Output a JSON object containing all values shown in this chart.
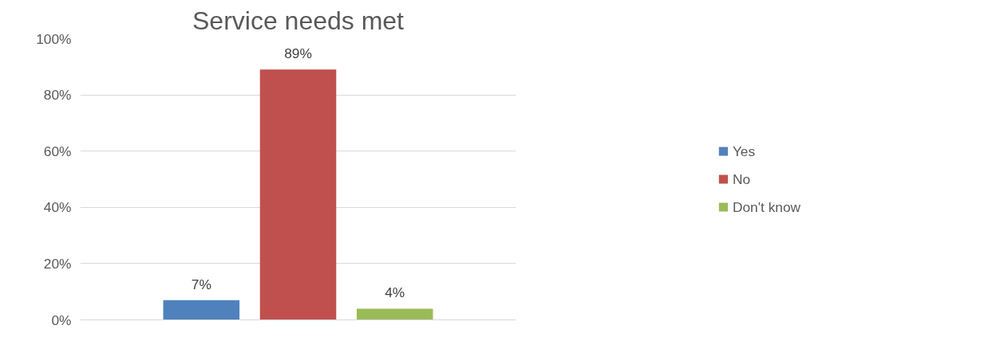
{
  "chart_data": {
    "type": "bar",
    "title": "Service needs met",
    "categories": [
      null
    ],
    "series": [
      {
        "name": "Yes",
        "color": "#4f81bd",
        "values": [
          7
        ],
        "value_labels": [
          "7%"
        ]
      },
      {
        "name": "No",
        "color": "#c0504d",
        "values": [
          89
        ],
        "value_labels": [
          "89%"
        ]
      },
      {
        "name": "Don't know",
        "color": "#9bbb59",
        "values": [
          4
        ],
        "value_labels": [
          "4%"
        ]
      }
    ],
    "ylim": [
      0,
      100
    ],
    "yticks": [
      {
        "value": 0,
        "label": "0%"
      },
      {
        "value": 20,
        "label": "20%"
      },
      {
        "value": 40,
        "label": "40%"
      },
      {
        "value": 60,
        "label": "60%"
      },
      {
        "value": 80,
        "label": "80%"
      },
      {
        "value": 100,
        "label": "100%"
      }
    ],
    "grid": "y",
    "legend": "right"
  }
}
